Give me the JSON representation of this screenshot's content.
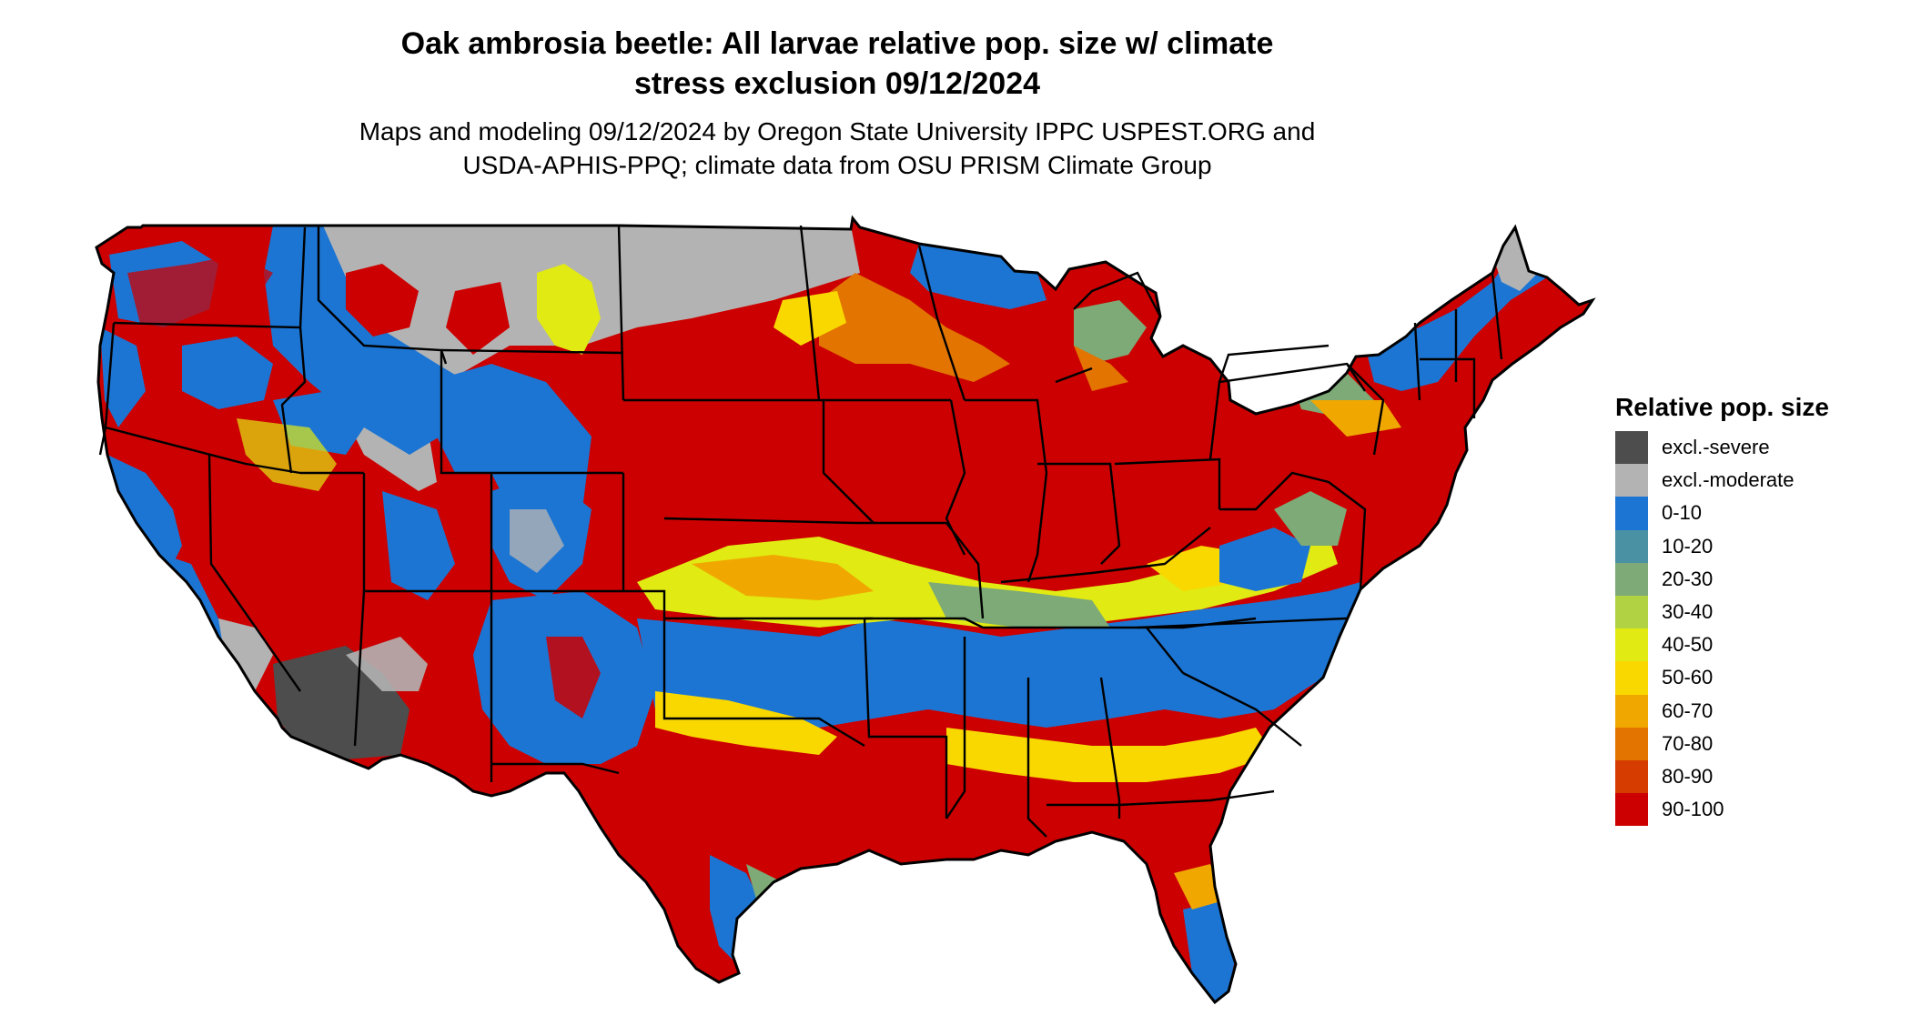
{
  "header": {
    "title_line1": "Oak ambrosia beetle: All larvae relative pop. size w/ climate",
    "title_line2": "stress exclusion 09/12/2024",
    "subtitle_line1": "Maps and modeling 09/12/2024 by Oregon State University IPPC USPEST.ORG and",
    "subtitle_line2": "USDA-APHIS-PPQ; climate data from OSU PRISM Climate Group"
  },
  "legend": {
    "title": "Relative pop. size",
    "items": [
      {
        "label": "excl.-severe",
        "color": "#4d4d4d"
      },
      {
        "label": "excl.-moderate",
        "color": "#b3b3b3"
      },
      {
        "label": "0-10",
        "color": "#1c75d3"
      },
      {
        "label": "10-20",
        "color": "#4a91a3"
      },
      {
        "label": "20-30",
        "color": "#7daa76"
      },
      {
        "label": "30-40",
        "color": "#b1d343"
      },
      {
        "label": "40-50",
        "color": "#e1ea12"
      },
      {
        "label": "50-60",
        "color": "#f9d800"
      },
      {
        "label": "60-70",
        "color": "#f0a800"
      },
      {
        "label": "70-80",
        "color": "#e37400"
      },
      {
        "label": "80-90",
        "color": "#d63c00"
      },
      {
        "label": "90-100",
        "color": "#cc0000"
      }
    ]
  }
}
